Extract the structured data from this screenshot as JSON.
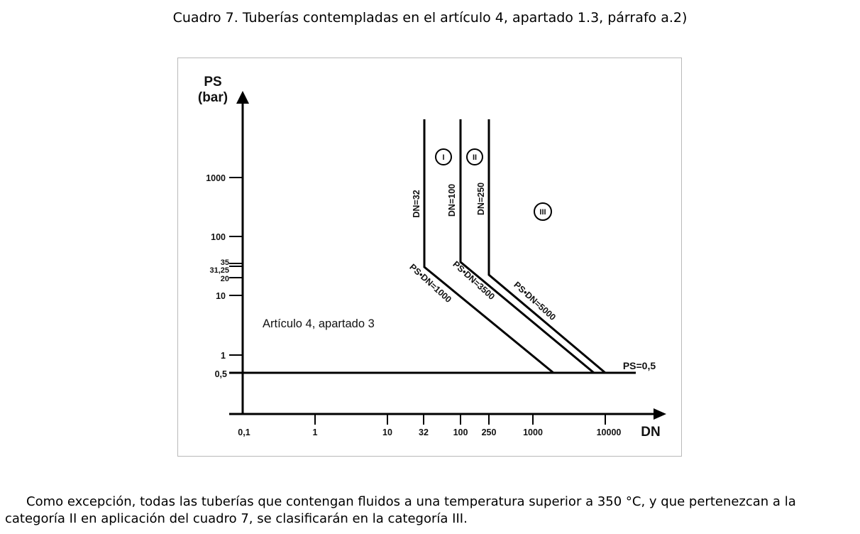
{
  "caption": "Cuadro 7. Tuberías contempladas en el artículo 4, apartado 1.3, párrafo a.2)",
  "diagram": {
    "y_axis": {
      "title_line1": "PS",
      "title_line2": "(bar)",
      "ticks": [
        "1000",
        "100",
        "35",
        "31,25",
        "20",
        "10",
        "1",
        "0,5"
      ]
    },
    "x_axis": {
      "title": "DN",
      "ticks": [
        "0,1",
        "1",
        "10",
        "32",
        "100",
        "250",
        "1000",
        "10000"
      ]
    },
    "region_label": "Artículo 4, apartado 3",
    "threshold_label": "PS=0,5",
    "curves": [
      {
        "vertical_label": "DN=32",
        "diagonal_label": "PS•DN=1000"
      },
      {
        "vertical_label": "DN=100",
        "diagonal_label": "PS•DN=3500"
      },
      {
        "vertical_label": "DN=250",
        "diagonal_label": "PS•DN=5000"
      }
    ],
    "categories": [
      "I",
      "II",
      "III"
    ]
  },
  "paragraph": "Como excepción, todas las tuberías que contengan fluidos a una temperatura superior a 350 °C, y que pertenezcan a la categoría II en aplicación del cuadro 7, se clasificarán en la categoría III."
}
